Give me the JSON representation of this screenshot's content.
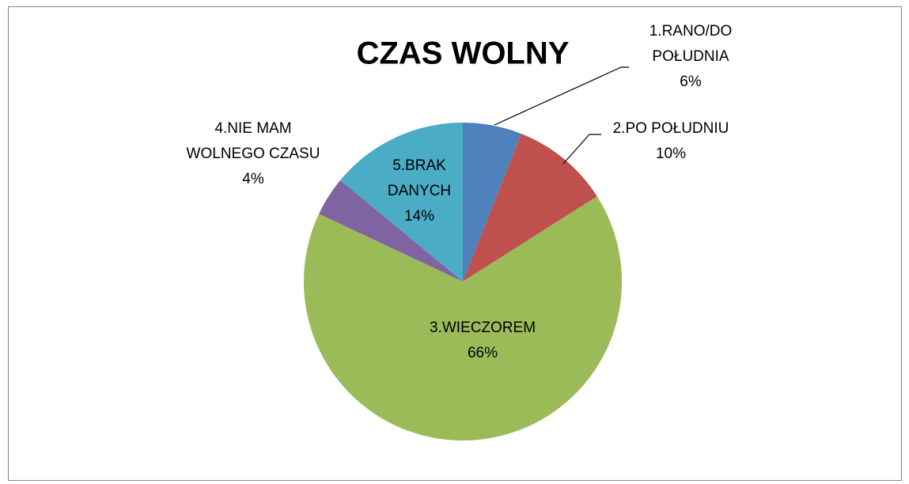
{
  "chart_data": {
    "type": "pie",
    "title": "CZAS WOLNY",
    "categories": [
      "1.RANO/DO POŁUDNIA",
      "2.PO POŁUDNIU",
      "3.WIECZOREM",
      "4.NIE MAM WOLNEGO CZASU",
      "5.BRAK DANYCH"
    ],
    "values": [
      6,
      10,
      66,
      4,
      14
    ],
    "value_labels": [
      "6%",
      "10%",
      "66%",
      "4%",
      "14%"
    ],
    "colors": [
      "#4f81bd",
      "#c0504d",
      "#9bbb59",
      "#8064a2",
      "#4bacc6"
    ]
  }
}
